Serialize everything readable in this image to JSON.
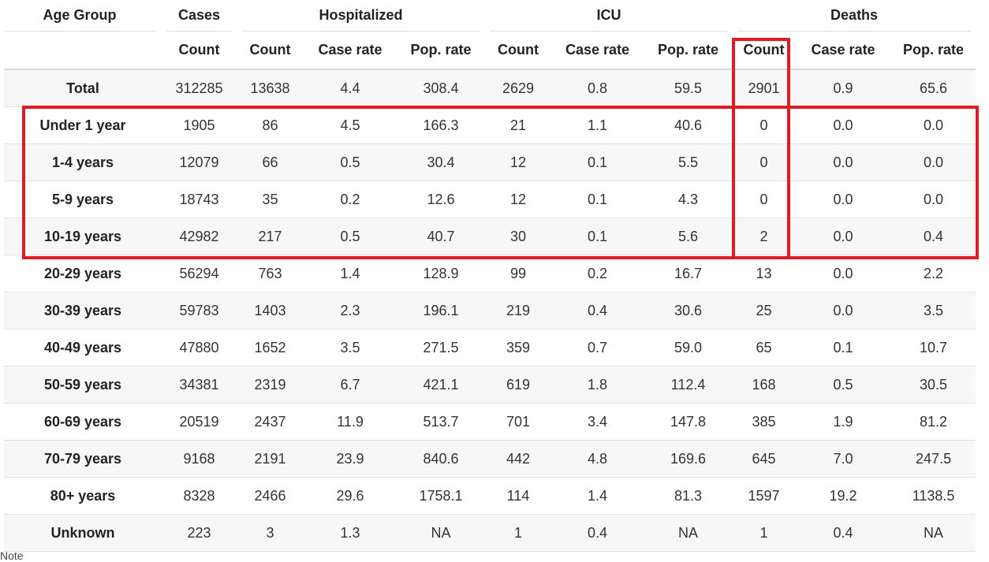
{
  "header": {
    "groups": {
      "age_group": "Age Group",
      "cases": "Cases",
      "hospitalized": "Hospitalized",
      "icu": "ICU",
      "deaths": "Deaths"
    },
    "columns": [
      "Count",
      "Count",
      "Case rate",
      "Pop. rate",
      "Count",
      "Case rate",
      "Pop. rate",
      "Count",
      "Case rate",
      "Pop. rate"
    ]
  },
  "rows": [
    {
      "age": "Total",
      "values": [
        "312285",
        "13638",
        "4.4",
        "308.4",
        "2629",
        "0.8",
        "59.5",
        "2901",
        "0.9",
        "65.6"
      ]
    },
    {
      "age": "Under 1 year",
      "values": [
        "1905",
        "86",
        "4.5",
        "166.3",
        "21",
        "1.1",
        "40.6",
        "0",
        "0.0",
        "0.0"
      ]
    },
    {
      "age": "1-4 years",
      "values": [
        "12079",
        "66",
        "0.5",
        "30.4",
        "12",
        "0.1",
        "5.5",
        "0",
        "0.0",
        "0.0"
      ]
    },
    {
      "age": "5-9 years",
      "values": [
        "18743",
        "35",
        "0.2",
        "12.6",
        "12",
        "0.1",
        "4.3",
        "0",
        "0.0",
        "0.0"
      ]
    },
    {
      "age": "10-19 years",
      "values": [
        "42982",
        "217",
        "0.5",
        "40.7",
        "30",
        "0.1",
        "5.6",
        "2",
        "0.0",
        "0.4"
      ]
    },
    {
      "age": "20-29 years",
      "values": [
        "56294",
        "763",
        "1.4",
        "128.9",
        "99",
        "0.2",
        "16.7",
        "13",
        "0.0",
        "2.2"
      ]
    },
    {
      "age": "30-39 years",
      "values": [
        "59783",
        "1403",
        "2.3",
        "196.1",
        "219",
        "0.4",
        "30.6",
        "25",
        "0.0",
        "3.5"
      ]
    },
    {
      "age": "40-49 years",
      "values": [
        "47880",
        "1652",
        "3.5",
        "271.5",
        "359",
        "0.7",
        "59.0",
        "65",
        "0.1",
        "10.7"
      ]
    },
    {
      "age": "50-59 years",
      "values": [
        "34381",
        "2319",
        "6.7",
        "421.1",
        "619",
        "1.8",
        "112.4",
        "168",
        "0.5",
        "30.5"
      ]
    },
    {
      "age": "60-69 years",
      "values": [
        "20519",
        "2437",
        "11.9",
        "513.7",
        "701",
        "3.4",
        "147.8",
        "385",
        "1.9",
        "81.2"
      ]
    },
    {
      "age": "70-79 years",
      "values": [
        "9168",
        "2191",
        "23.9",
        "840.6",
        "442",
        "4.8",
        "169.6",
        "645",
        "7.0",
        "247.5"
      ]
    },
    {
      "age": "80+ years",
      "values": [
        "8328",
        "2466",
        "29.6",
        "1758.1",
        "114",
        "1.4",
        "81.3",
        "1597",
        "19.2",
        "1138.5"
      ]
    },
    {
      "age": "Unknown",
      "values": [
        "223",
        "3",
        "1.3",
        "NA",
        "1",
        "0.4",
        "NA",
        "1",
        "0.4",
        "NA"
      ]
    }
  ],
  "footer_note": "Note",
  "highlight_color": "#e01b24"
}
